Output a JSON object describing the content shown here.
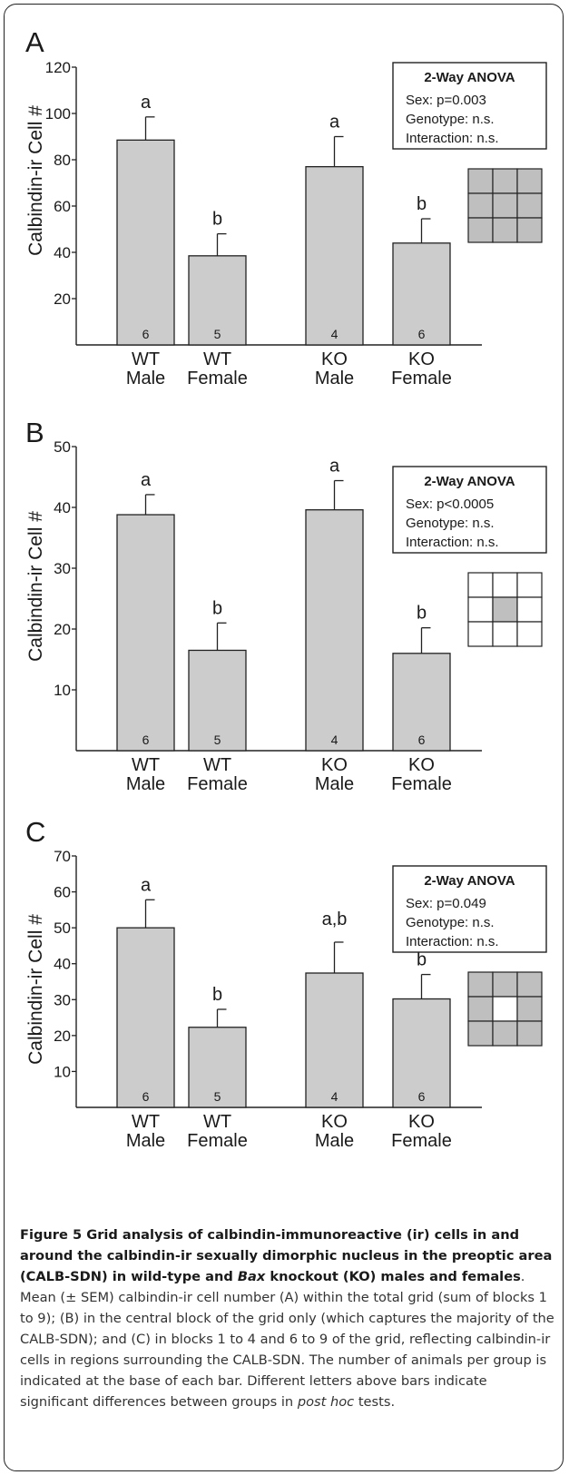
{
  "chart_data": [
    {
      "type": "bar",
      "panel_label": "A",
      "categories": [
        "WT\nMale",
        "WT\nFemale",
        "KO\nMale",
        "KO\nFemale"
      ],
      "values": [
        88.5,
        38.5,
        77,
        44
      ],
      "errors": [
        10,
        9.5,
        13,
        10.5
      ],
      "sig_letters": [
        "a",
        "b",
        "a",
        "b"
      ],
      "n_labels": [
        "6",
        "5",
        "4",
        "6"
      ],
      "ylabel": "Calbindin-ir Cell #",
      "yticks": [
        20,
        40,
        60,
        80,
        100,
        120
      ],
      "ylim": [
        0,
        120
      ],
      "grid_on": false,
      "legend_placement": "none",
      "anova_box": {
        "title": "2-Way ANOVA",
        "lines": [
          "Sex: p=0.003",
          "Genotype: n.s.",
          "Interaction: n.s."
        ]
      },
      "grid_icon": {
        "filled_blocks": [
          1,
          2,
          3,
          4,
          5,
          6,
          7,
          8,
          9
        ]
      }
    },
    {
      "type": "bar",
      "panel_label": "B",
      "categories": [
        "WT\nMale",
        "WT\nFemale",
        "KO\nMale",
        "KO\nFemale"
      ],
      "values": [
        38.8,
        16.5,
        39.6,
        16
      ],
      "errors": [
        3.3,
        4.5,
        4.8,
        4.2
      ],
      "sig_letters": [
        "a",
        "b",
        "a",
        "b"
      ],
      "n_labels": [
        "6",
        "5",
        "4",
        "6"
      ],
      "ylabel": "Calbindin-ir Cell #",
      "yticks": [
        10,
        20,
        30,
        40,
        50
      ],
      "ylim": [
        0,
        50
      ],
      "grid_on": false,
      "legend_placement": "none",
      "anova_box": {
        "title": "2-Way ANOVA",
        "lines": [
          "Sex: p<0.0005",
          "Genotype: n.s.",
          "Interaction: n.s."
        ]
      },
      "grid_icon": {
        "filled_blocks": [
          5
        ]
      }
    },
    {
      "type": "bar",
      "panel_label": "C",
      "categories": [
        "WT\nMale",
        "WT\nFemale",
        "KO\nMale",
        "KO\nFemale"
      ],
      "values": [
        50,
        22.3,
        37.4,
        30.2
      ],
      "errors": [
        7.8,
        5,
        8.6,
        6.8
      ],
      "sig_letters": [
        "a",
        "b",
        "a,b",
        "b"
      ],
      "n_labels": [
        "6",
        "5",
        "4",
        "6"
      ],
      "ylabel": "Calbindin-ir Cell #",
      "yticks": [
        10,
        20,
        30,
        40,
        50,
        60,
        70
      ],
      "ylim": [
        0,
        70
      ],
      "grid_on": false,
      "legend_placement": "none",
      "anova_box": {
        "title": "2-Way ANOVA",
        "lines": [
          "Sex: p=0.049",
          "Genotype: n.s.",
          "Interaction: n.s."
        ]
      },
      "grid_icon": {
        "filled_blocks": [
          1,
          2,
          3,
          4,
          6,
          7,
          8,
          9
        ]
      }
    }
  ],
  "colors": {
    "bar": "#cccccc",
    "grid_fill": "#bfbfbf",
    "text": "#1a1a1a",
    "axis": "#222222"
  },
  "caption": {
    "bold_1": "Figure 5 Grid analysis of calbindin-immunoreactive (ir) cells in and around the calbindin-ir sexually dimorphic nucleus in the preoptic area (CALB-SDN) in wild-type and ",
    "bold_italic": "Bax",
    "bold_2": " knockout (KO) males and females",
    "text_1": ". Mean (± SEM) calbindin-ir cell number (A) within the total grid (sum of blocks 1 to 9); (B) in the central block of the grid only (which captures the majority of the CALB-SDN); and (C) in blocks 1 to 4 and 6 to 9 of the grid, reflecting calbindin-ir cells in regions surrounding the CALB-SDN. The number of animals per group is indicated at the base of each bar. Different letters above bars indicate significant differences between groups in ",
    "italic": "post hoc",
    "text_2": " tests."
  }
}
